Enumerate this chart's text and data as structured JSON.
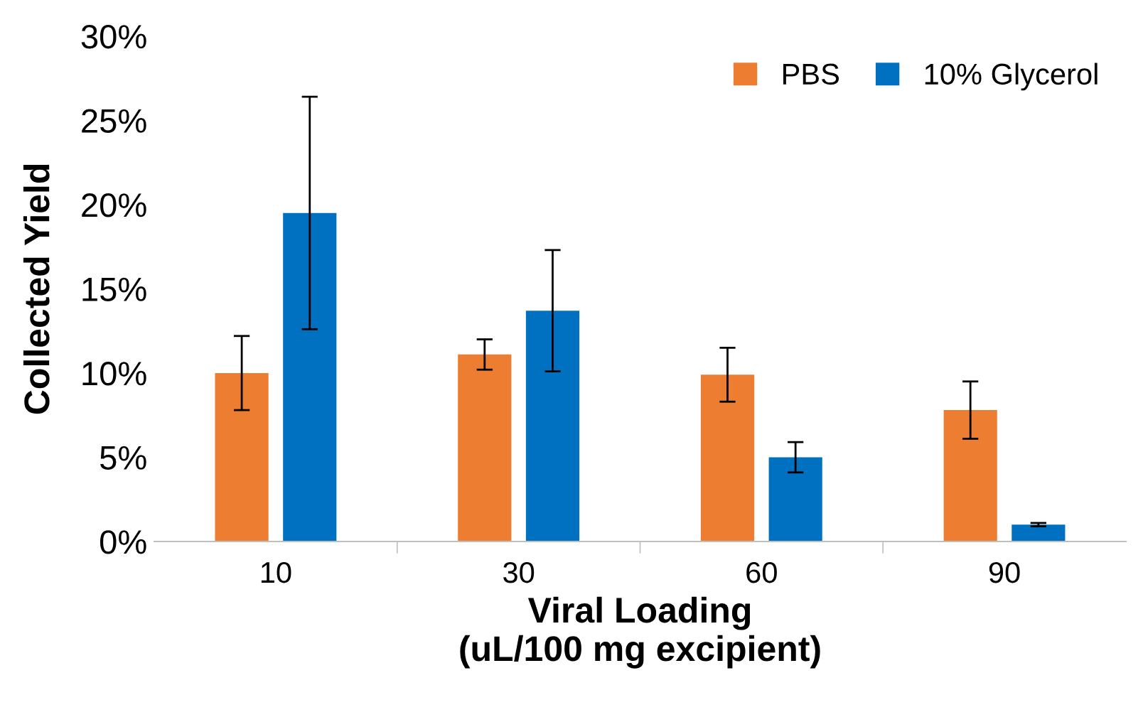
{
  "chart_data": {
    "type": "bar",
    "xlabel": "Viral Loading\n(uL/100 mg excipient)",
    "ylabel": "Collected Yield",
    "categories": [
      "10",
      "30",
      "60",
      "90"
    ],
    "series": [
      {
        "name": "PBS",
        "color": "#ed7d31",
        "values": [
          10.0,
          11.1,
          9.9,
          7.8
        ],
        "errors": [
          2.2,
          0.9,
          1.6,
          1.7
        ]
      },
      {
        "name": "10% Glycerol",
        "color": "#0070c0",
        "values": [
          19.5,
          13.7,
          5.0,
          1.0
        ],
        "errors": [
          6.9,
          3.6,
          0.9,
          0.1
        ]
      }
    ],
    "ylim": [
      0,
      30
    ],
    "yticks": [
      {
        "value": 0,
        "label": "0%"
      },
      {
        "value": 5,
        "label": "5%"
      },
      {
        "value": 10,
        "label": "10%"
      },
      {
        "value": 15,
        "label": "15%"
      },
      {
        "value": 20,
        "label": "20%"
      },
      {
        "value": 25,
        "label": "25%"
      },
      {
        "value": 30,
        "label": "30%"
      }
    ],
    "grid": false,
    "legend": "top right"
  }
}
